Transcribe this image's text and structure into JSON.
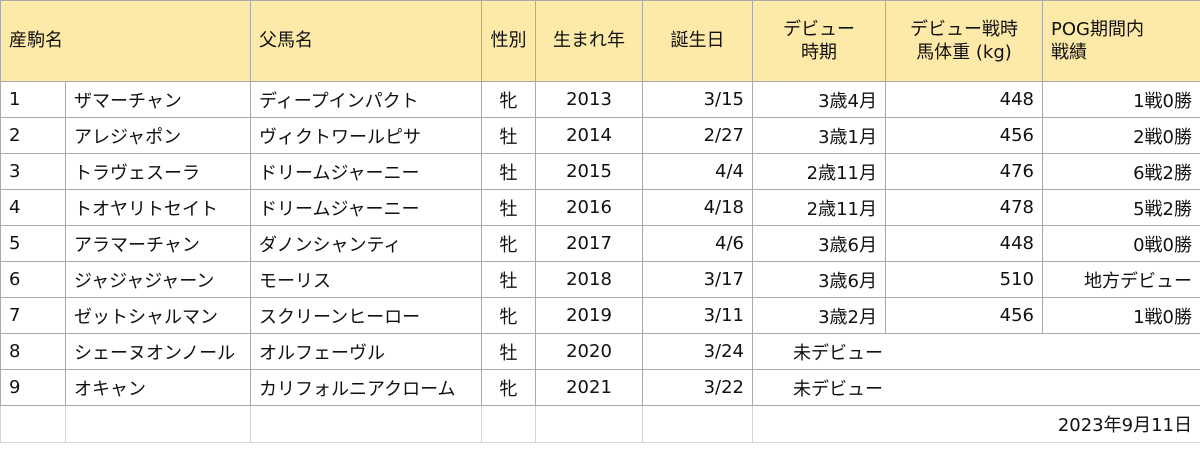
{
  "header": {
    "colt_name": "産駒名",
    "sire_name": "父馬名",
    "sex": "性別",
    "birth_year": "生まれ年",
    "birthday": "誕生日",
    "debut_period_1": "デビュー",
    "debut_period_2": "時期",
    "weight_1": "デビュー戦時",
    "weight_2": "馬体重 (kg)",
    "record_1": "POG期間内",
    "record_2": "戦績"
  },
  "rows": [
    {
      "no": "1",
      "name": "ザマーチャン",
      "sire": "ディープインパクト",
      "sex": "牝",
      "year": "2013",
      "birthday": "3/15",
      "debut": "3歳4月",
      "weight": "448",
      "record": "1戦0勝"
    },
    {
      "no": "2",
      "name": "アレジャポン",
      "sire": "ヴィクトワールピサ",
      "sex": "牡",
      "year": "2014",
      "birthday": "2/27",
      "debut": "3歳1月",
      "weight": "456",
      "record": "2戦0勝"
    },
    {
      "no": "3",
      "name": "トラヴェスーラ",
      "sire": "ドリームジャーニー",
      "sex": "牡",
      "year": "2015",
      "birthday": "4/4",
      "debut": "2歳11月",
      "weight": "476",
      "record": "6戦2勝"
    },
    {
      "no": "4",
      "name": "トオヤリトセイト",
      "sire": "ドリームジャーニー",
      "sex": "牡",
      "year": "2016",
      "birthday": "4/18",
      "debut": "2歳11月",
      "weight": "478",
      "record": "5戦2勝"
    },
    {
      "no": "5",
      "name": "アラマーチャン",
      "sire": "ダノンシャンティ",
      "sex": "牝",
      "year": "2017",
      "birthday": "4/6",
      "debut": "3歳6月",
      "weight": "448",
      "record": "0戦0勝"
    },
    {
      "no": "6",
      "name": "ジャジャジャーン",
      "sire": "モーリス",
      "sex": "牡",
      "year": "2018",
      "birthday": "3/17",
      "debut": "3歳6月",
      "weight": "510",
      "record": "地方デビュー"
    },
    {
      "no": "7",
      "name": "ゼットシャルマン",
      "sire": "スクリーンヒーロー",
      "sex": "牝",
      "year": "2019",
      "birthday": "3/11",
      "debut": "3歳2月",
      "weight": "456",
      "record": "1戦0勝"
    }
  ],
  "undebuted_rows": [
    {
      "no": "8",
      "name": "シェーヌオンノール",
      "sire": "オルフェーヴル",
      "sex": "牡",
      "year": "2020",
      "birthday": "3/24",
      "debut": "未デビュー"
    },
    {
      "no": "9",
      "name": "オキャン",
      "sire": "カリフォルニアクローム",
      "sex": "牝",
      "year": "2021",
      "birthday": "3/22",
      "debut": "未デビュー"
    }
  ],
  "footer_date": "2023年9月11日"
}
